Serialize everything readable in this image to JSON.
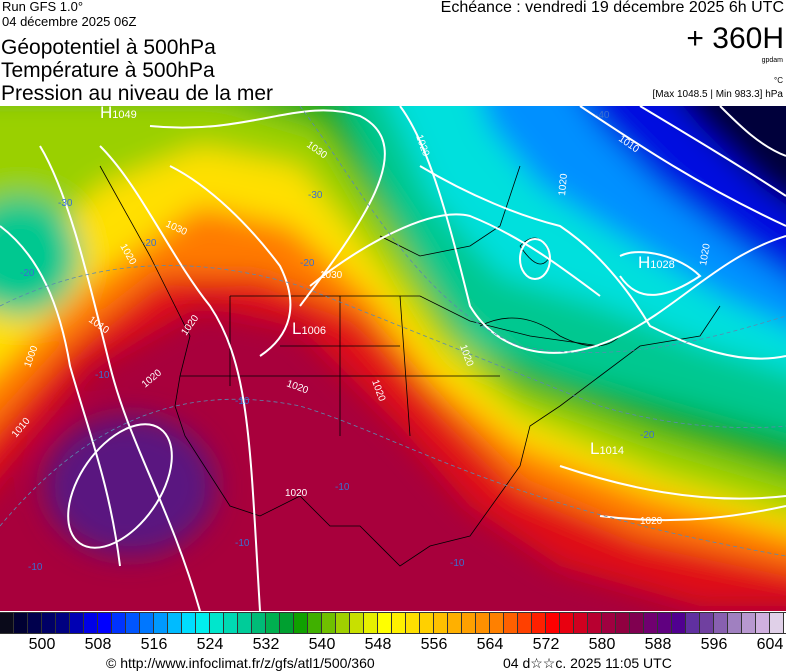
{
  "header": {
    "run": "Run GFS 1.0°",
    "run_date": "04 décembre 2025 06Z",
    "titles": [
      "Géopotentiel à 500hPa",
      "Température à 500hPa",
      "Pression au niveau de la mer"
    ],
    "echeance": "Echéance : vendredi 19 décembre 2025 6h UTC",
    "hour": "+ 360H",
    "unit_geo": "gpdam",
    "unit_temp": "°C",
    "maxmin": "[Max 1048.5 | Min 983.3] hPa"
  },
  "map": {
    "pressure_centers": [
      {
        "type": "H",
        "value": "1049"
      },
      {
        "type": "L",
        "value": "1006"
      },
      {
        "type": "H",
        "value": "1028"
      },
      {
        "type": "L",
        "value": "1014"
      }
    ],
    "isobar_labels": [
      "1030",
      "1030",
      "1030",
      "1020",
      "1020",
      "1010",
      "1000",
      "1010",
      "1020",
      "1020",
      "1020",
      "1020",
      "1010",
      "1020",
      "1020",
      "1020",
      "1020",
      "1020"
    ],
    "temperature_labels": [
      "-30",
      "-30",
      "-20",
      "-20",
      "-20",
      "-10",
      "-10",
      "-10",
      "-10",
      "-10",
      "-10",
      "-20",
      "-40"
    ]
  },
  "colorbar": {
    "colors": [
      "#0a0a1a",
      "#000033",
      "#00004d",
      "#000066",
      "#000080",
      "#0000b3",
      "#0000e6",
      "#0000ff",
      "#0033ff",
      "#0055ff",
      "#0077ff",
      "#0099ff",
      "#00bbff",
      "#00ddff",
      "#00eeee",
      "#00e6cc",
      "#00d9b3",
      "#00cc99",
      "#00bb77",
      "#00b050",
      "#00a030",
      "#10a000",
      "#40b000",
      "#70c000",
      "#a0d000",
      "#c8e000",
      "#e6f000",
      "#ffff00",
      "#fff000",
      "#ffe000",
      "#ffd000",
      "#ffc000",
      "#ffb000",
      "#ffa000",
      "#ff9000",
      "#ff8000",
      "#ff6000",
      "#ff4000",
      "#ff2000",
      "#ff0000",
      "#e80010",
      "#d00020",
      "#b80030",
      "#a00040",
      "#900040",
      "#800050",
      "#700070",
      "#600080",
      "#500090",
      "#6030a0",
      "#7040a0",
      "#8860b0",
      "#a080c0",
      "#b898d0",
      "#d0b0e0",
      "#e0d0e8"
    ],
    "ticks": [
      "500",
      "508",
      "516",
      "524",
      "532",
      "540",
      "548",
      "556",
      "564",
      "572",
      "580",
      "588",
      "596",
      "604"
    ]
  },
  "footer": {
    "url": "© http://www.infoclimat.fr/z/gfs/atl1/500/360",
    "generated": "04 d☆☆c. 2025 11:05 UTC"
  }
}
